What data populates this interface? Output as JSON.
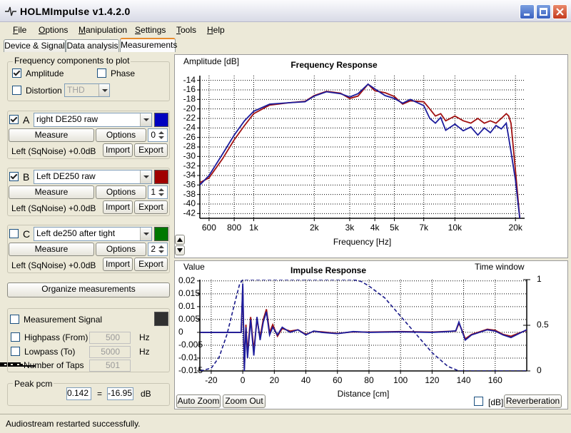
{
  "window": {
    "title": "HOLMImpulse  v1.4.2.0"
  },
  "menu": [
    "File",
    "Options",
    "Manipulation",
    "Settings",
    "Tools",
    "Help"
  ],
  "tabs": {
    "items": [
      "Device & Signal",
      "Data analysis",
      "Measurements"
    ],
    "selected": 2
  },
  "frequency_components": {
    "title": "Frequency components to plot",
    "amplitude": {
      "label": "Amplitude",
      "checked": true
    },
    "phase": {
      "label": "Phase",
      "checked": false
    },
    "distortion": {
      "label": "Distortion",
      "checked": false,
      "type": "THD"
    }
  },
  "measurements": [
    {
      "checked": true,
      "letter": "A",
      "name": "right DE250 raw",
      "color": "#0000c0",
      "measure": "Measure",
      "options": "Options",
      "index": "0",
      "info": "Left (SqNoise) +0.0dB",
      "import": "Import",
      "export": "Export"
    },
    {
      "checked": true,
      "letter": "B",
      "name": "Left DE250 raw",
      "color": "#a00000",
      "measure": "Measure",
      "options": "Options",
      "index": "1",
      "info": "Left (SqNoise) +0.0dB",
      "import": "Import",
      "export": "Export"
    },
    {
      "checked": false,
      "letter": "C",
      "name": "Left de250 after tight",
      "color": "#007800",
      "measure": "Measure",
      "options": "Options",
      "index": "2",
      "info": "Left (SqNoise) +0.0dB",
      "import": "Import",
      "export": "Export"
    }
  ],
  "organize": "Organize measurements",
  "signal": {
    "title": "Measurement Signal",
    "checked": false,
    "color": "#303030",
    "highpass": {
      "label": "Highpass (From)",
      "checked": false,
      "value": "500",
      "unit": "Hz"
    },
    "lowpass": {
      "label": "Lowpass (To)",
      "checked": false,
      "value": "5000",
      "unit": "Hz"
    },
    "taps": {
      "label": "Number of Taps",
      "value": "501"
    }
  },
  "peak": {
    "title": "Peak pcm",
    "value": "0.142",
    "equals": "=",
    "db": "-16.95",
    "unit": "dB"
  },
  "status": "Audiostream restarted successfully.",
  "frequency_chart": {
    "type": "line",
    "title": "Frequency Response",
    "y_label": "Amplitude [dB]",
    "x_label": "Frequency [Hz]",
    "xscale": "log",
    "grid": true,
    "xlim": [
      540,
      22200
    ],
    "ylim": [
      -43,
      -13
    ],
    "xticks": [
      600,
      800,
      {
        "value": 1000,
        "label": "1k"
      },
      {
        "value": 2000,
        "label": "2k"
      },
      {
        "value": 3000,
        "label": "3k"
      },
      {
        "value": 4000,
        "label": "4k"
      },
      {
        "value": 5000,
        "label": "5k"
      },
      {
        "value": 7000,
        "label": "7k"
      },
      {
        "value": 10000,
        "label": "10k"
      },
      {
        "value": 20000,
        "label": "20k"
      }
    ],
    "yticks": [
      -14,
      -16,
      -18,
      -20,
      -22,
      -24,
      -26,
      -28,
      -30,
      -32,
      -34,
      -36,
      -38,
      -40,
      -42
    ],
    "series": [
      {
        "color": "#a01010",
        "x": [
          540,
          600,
          700,
          800,
          900,
          1000,
          1200,
          1500,
          1800,
          2000,
          2300,
          2700,
          3000,
          3300,
          3700,
          4000,
          4500,
          5000,
          5500,
          6000,
          7000,
          7500,
          8000,
          8500,
          9000,
          10000,
          11000,
          12000,
          13000,
          14000,
          15000,
          16000,
          17000,
          18000,
          18500,
          19000,
          20000,
          21000
        ],
        "values": [
          -35.5,
          -34.5,
          -30.5,
          -26.5,
          -23.5,
          -21,
          -19.2,
          -18.7,
          -18.4,
          -17.2,
          -16.3,
          -16.7,
          -17.8,
          -17.3,
          -14.8,
          -16.2,
          -16.6,
          -17.4,
          -19,
          -18.3,
          -18.5,
          -20,
          -21.5,
          -21,
          -22.5,
          -21.5,
          -22.5,
          -23,
          -22,
          -23,
          -22.5,
          -23,
          -22,
          -21,
          -21.5,
          -23,
          -33,
          -43
        ]
      },
      {
        "color": "#1c1c9c",
        "x": [
          540,
          600,
          700,
          800,
          900,
          1000,
          1200,
          1500,
          1800,
          2000,
          2300,
          2700,
          3000,
          3300,
          3700,
          4000,
          4500,
          5000,
          5500,
          6000,
          7000,
          7500,
          8000,
          8500,
          9000,
          10000,
          11000,
          12000,
          13000,
          14000,
          15000,
          16000,
          17000,
          18000,
          18500,
          19000,
          20000,
          21000
        ],
        "values": [
          -36,
          -34,
          -29.5,
          -25.5,
          -22.5,
          -20.5,
          -19,
          -18.7,
          -18.5,
          -17.3,
          -16.4,
          -16.8,
          -17.5,
          -16.8,
          -14.8,
          -15.8,
          -17.2,
          -17.8,
          -18.8,
          -18,
          -19.3,
          -22,
          -23,
          -21.8,
          -24.5,
          -23.2,
          -24.6,
          -23.8,
          -25.5,
          -24,
          -25,
          -23.5,
          -24.2,
          -23,
          -26,
          -29,
          -35,
          -43
        ]
      }
    ]
  },
  "impulse_chart": {
    "type": "line",
    "title": "Impulse Response",
    "y_label": "Value",
    "y2_label": "Time window",
    "x_label": "Distance [cm]",
    "grid": true,
    "xlim": [
      -27.2,
      180
    ],
    "ylim": [
      -0.015,
      0.0205
    ],
    "y2lim": [
      0,
      1
    ],
    "xticks": [
      -20,
      0,
      20,
      40,
      60,
      80,
      100,
      120,
      140,
      160
    ],
    "yticks": [
      0.02,
      0.015,
      0.01,
      0.005,
      0,
      -0.005,
      -0.01,
      -0.015
    ],
    "y2ticks": [
      0,
      0.5,
      1
    ],
    "series": [
      {
        "color": "#1a1a8a",
        "axis": "y2",
        "style": "dashed",
        "x": [
          -27,
          -20,
          -15,
          -10,
          -5,
          -2,
          0,
          70,
          75,
          80,
          90,
          100,
          110,
          120,
          130,
          137,
          180
        ],
        "values": [
          0,
          0.03,
          0.15,
          0.4,
          0.75,
          0.95,
          1,
          1,
          0.98,
          0.93,
          0.8,
          0.6,
          0.4,
          0.2,
          0.05,
          0,
          0
        ]
      },
      {
        "color": "#a01010",
        "x": [
          -27,
          -1,
          0,
          1,
          2,
          3,
          5,
          7,
          9,
          11,
          13,
          15,
          17,
          19,
          22,
          25,
          30,
          35,
          40,
          45,
          50,
          60,
          70,
          80,
          100,
          120,
          130,
          135,
          137,
          139,
          141,
          145,
          150,
          155,
          160,
          165,
          170,
          175,
          180
        ],
        "values": [
          0,
          0,
          0.018,
          -0.014,
          0.003,
          -0.008,
          0.006,
          -0.007,
          0.005,
          -0.002,
          0.005,
          0.009,
          0,
          0.003,
          -0.0015,
          0.0015,
          0.0005,
          0.001,
          -0.0008,
          0.0004,
          0.0002,
          -0.0004,
          0.0002,
          0.0001,
          0.0003,
          0.0001,
          0.0004,
          0.0005,
          0.0035,
          0.0008,
          -0.0025,
          -0.0008,
          0.0002,
          0.0012,
          0.0008,
          -0.0008,
          -0.0015,
          -0.0003,
          0.0008
        ]
      },
      {
        "color": "#1c1c9c",
        "x": [
          -27,
          -1,
          0,
          1,
          2,
          3,
          5,
          7,
          9,
          11,
          13,
          15,
          17,
          19,
          22,
          25,
          30,
          35,
          40,
          45,
          50,
          60,
          70,
          80,
          100,
          120,
          130,
          135,
          137,
          139,
          141,
          145,
          150,
          155,
          160,
          165,
          170,
          175,
          180
        ],
        "values": [
          0,
          0,
          0.019,
          -0.015,
          0.002,
          -0.01,
          0.005,
          -0.009,
          0.006,
          -0.003,
          0.004,
          0.008,
          -0.001,
          0.002,
          -0.001,
          0.002,
          0,
          0.001,
          -0.001,
          0.0005,
          0,
          -0.0005,
          0.0003,
          0,
          0.0002,
          0,
          0.0003,
          0.0006,
          0.004,
          0.0005,
          -0.003,
          -0.001,
          0,
          0.001,
          0.0005,
          -0.001,
          -0.002,
          -0.0005,
          0.001
        ]
      }
    ],
    "auto_zoom": "Auto Zoom",
    "zoom_out": "Zoom Out",
    "db_toggle": {
      "label": "[dB]",
      "checked": false
    },
    "reverberation": "Reverberation"
  }
}
